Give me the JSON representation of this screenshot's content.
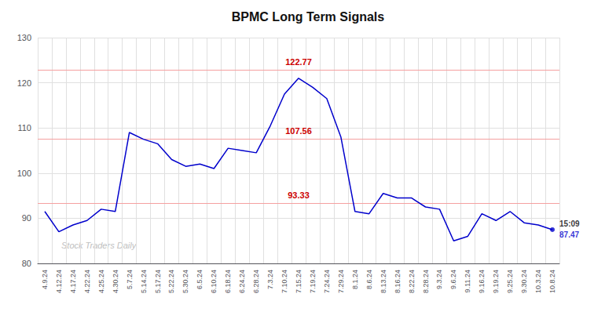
{
  "chart_data": {
    "type": "line",
    "title": "BPMC Long Term Signals",
    "categories": [
      "4.9.24",
      "4.12.24",
      "4.17.24",
      "4.22.24",
      "4.25.24",
      "4.30.24",
      "5.7.24",
      "5.14.24",
      "5.17.24",
      "5.22.24",
      "5.30.24",
      "6.5.24",
      "6.10.24",
      "6.18.24",
      "6.24.24",
      "6.28.24",
      "7.3.24",
      "7.10.24",
      "7.15.24",
      "7.19.24",
      "7.24.24",
      "7.29.24",
      "8.1.24",
      "8.6.24",
      "8.13.24",
      "8.16.24",
      "8.22.24",
      "8.28.24",
      "9.3.24",
      "9.6.24",
      "9.11.24",
      "9.16.24",
      "9.19.24",
      "9.25.24",
      "9.30.24",
      "10.3.24",
      "10.8.24"
    ],
    "values": [
      91.5,
      87.0,
      88.5,
      89.5,
      92.0,
      91.5,
      109.0,
      107.5,
      106.5,
      103.0,
      101.5,
      102.0,
      101.0,
      105.5,
      105.0,
      104.5,
      110.5,
      117.5,
      121.0,
      119.0,
      116.5,
      108.0,
      91.5,
      91.0,
      95.5,
      94.5,
      94.5,
      92.5,
      92.0,
      85.0,
      86.0,
      91.0,
      89.5,
      91.5,
      89.0,
      88.5,
      87.47
    ],
    "color": "#0000cc",
    "hlines": [
      {
        "value": 122.77,
        "label": "122.77"
      },
      {
        "value": 107.56,
        "label": "107.56"
      },
      {
        "value": 93.33,
        "label": "93.33"
      }
    ],
    "hline_color": "#f5a0a0",
    "hline_label_color": "#cc0000",
    "last_value": 87.47,
    "last_label": "15:09",
    "watermark": "Stock Traders Daily",
    "ylim": [
      80,
      130
    ],
    "yticks": [
      80,
      90,
      100,
      110,
      120,
      130
    ],
    "grid": true
  }
}
